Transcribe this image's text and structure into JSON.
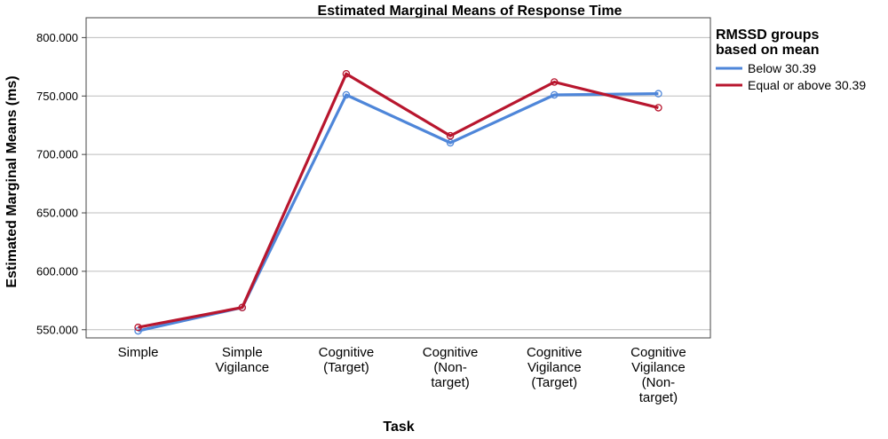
{
  "chart_data": {
    "type": "line",
    "title": "Estimated Marginal Means of Response Time",
    "xlabel": "Task",
    "ylabel": "Estimated Marginal Means (ms)",
    "categories": [
      [
        "Simple"
      ],
      [
        "Simple",
        "Vigilance"
      ],
      [
        "Cognitive",
        "(Target)"
      ],
      [
        "Cognitive",
        "(Non-",
        "target)"
      ],
      [
        "Cognitive",
        "Vigilance",
        "(Target)"
      ],
      [
        "Cognitive",
        "Vigilance",
        "(Non-",
        "target)"
      ]
    ],
    "y_ticks": [
      "550.000",
      "600.000",
      "650.000",
      "700.000",
      "750.000",
      "800.000"
    ],
    "ylim": [
      543,
      817
    ],
    "grid": "horizontal",
    "legend": {
      "title": [
        "RMSSD groups",
        "based on mean"
      ],
      "placement": "right"
    },
    "series": [
      {
        "name": "Below 30.39",
        "color": "#4e86d9",
        "values": [
          549,
          569,
          751,
          710,
          751,
          752
        ]
      },
      {
        "name": "Equal or above 30.39",
        "color": "#b8162e",
        "values": [
          552,
          569,
          769,
          716,
          762,
          740
        ]
      }
    ]
  }
}
